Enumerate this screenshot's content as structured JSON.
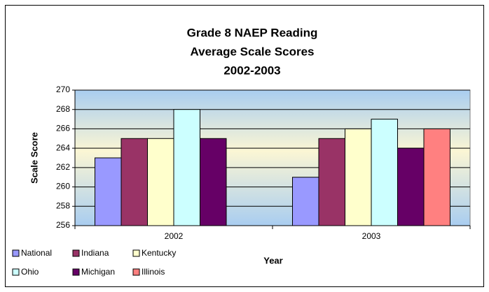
{
  "chart_data": {
    "type": "bar",
    "title": [
      "Grade 8 NAEP Reading",
      "Average Scale Scores",
      "2002-2003"
    ],
    "y_label": "Scale Score",
    "x_label": "Year",
    "categories": [
      "2002",
      "2003"
    ],
    "series": [
      {
        "name": "National",
        "color": "#9999ff",
        "values": [
          263,
          261
        ]
      },
      {
        "name": "Indiana",
        "color": "#993366",
        "values": [
          265,
          265
        ]
      },
      {
        "name": "Kentucky",
        "color": "#ffffcc",
        "values": [
          265,
          266
        ]
      },
      {
        "name": "Ohio",
        "color": "#ccffff",
        "values": [
          268,
          267
        ]
      },
      {
        "name": "Michigan",
        "color": "#660066",
        "values": [
          265,
          264
        ]
      },
      {
        "name": "Illinois",
        "color": "#ff8080",
        "values": [
          null,
          266
        ]
      }
    ],
    "ylim": [
      256,
      270
    ],
    "yticks": [
      256,
      258,
      260,
      262,
      264,
      266,
      268,
      270
    ],
    "grid": true,
    "legend": "bottom-left"
  }
}
